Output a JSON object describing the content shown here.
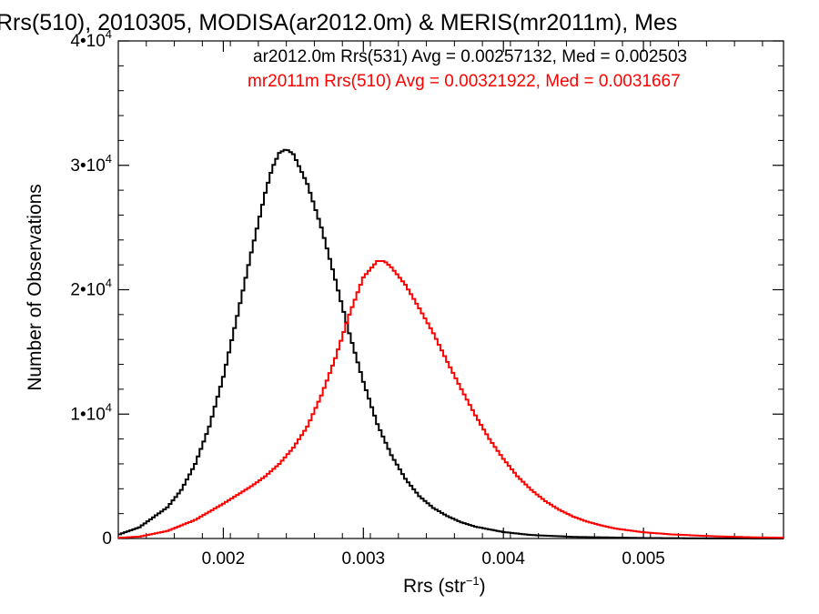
{
  "chart_data": {
    "type": "line",
    "title": "Rrs(510), 2010305, MODISA(ar2012.0m) & MERIS(mr2011m), Mes",
    "xlabel_main": "Rrs (str",
    "xlabel_sup": "−1",
    "xlabel_close": ")",
    "ylabel": "Number of Observations",
    "xlim": [
      0.00125,
      0.006
    ],
    "ylim": [
      0,
      40000
    ],
    "xticks": [
      {
        "value": 0.002,
        "label": "0.002"
      },
      {
        "value": 0.003,
        "label": "0.003"
      },
      {
        "value": 0.004,
        "label": "0.004"
      },
      {
        "value": 0.005,
        "label": "0.005"
      }
    ],
    "yticks": [
      {
        "value": 0,
        "label": "0",
        "sup": ""
      },
      {
        "value": 10000,
        "label": "1•10",
        "sup": "4"
      },
      {
        "value": 20000,
        "label": "2•10",
        "sup": "4"
      },
      {
        "value": 30000,
        "label": "3•10",
        "sup": "4"
      },
      {
        "value": 40000,
        "label": "4•10",
        "sup": "4"
      }
    ],
    "legend": [
      {
        "text": "ar2012.0m Rrs(531) Avg = 0.00257132, Med = 0.002503",
        "color": "#000000"
      },
      {
        "text": "mr2011m Rrs(510) Avg = 0.00321922, Med = 0.0031667",
        "color": "#ff0000"
      }
    ],
    "series": [
      {
        "color": "#000000",
        "points": [
          [
            0.00125,
            300
          ],
          [
            0.0014,
            900
          ],
          [
            0.0016,
            2500
          ],
          [
            0.0017,
            3900
          ],
          [
            0.0018,
            6000
          ],
          [
            0.0019,
            9000
          ],
          [
            0.002,
            13000
          ],
          [
            0.0021,
            17900
          ],
          [
            0.0022,
            23000
          ],
          [
            0.0023,
            27800
          ],
          [
            0.00235,
            29800
          ],
          [
            0.0024,
            31000
          ],
          [
            0.00245,
            31300
          ],
          [
            0.0025,
            30900
          ],
          [
            0.0026,
            28500
          ],
          [
            0.0027,
            25000
          ],
          [
            0.0028,
            20800
          ],
          [
            0.0029,
            16500
          ],
          [
            0.003,
            12600
          ],
          [
            0.0031,
            9200
          ],
          [
            0.0032,
            6700
          ],
          [
            0.0033,
            4800
          ],
          [
            0.0034,
            3400
          ],
          [
            0.0035,
            2450
          ],
          [
            0.0036,
            1800
          ],
          [
            0.0037,
            1300
          ],
          [
            0.0038,
            950
          ],
          [
            0.004,
            520
          ],
          [
            0.0042,
            280
          ],
          [
            0.0045,
            130
          ],
          [
            0.005,
            40
          ],
          [
            0.0055,
            10
          ],
          [
            0.006,
            0
          ]
        ]
      },
      {
        "color": "#ff0000",
        "points": [
          [
            0.00125,
            50
          ],
          [
            0.0014,
            150
          ],
          [
            0.0016,
            600
          ],
          [
            0.0018,
            1500
          ],
          [
            0.002,
            2800
          ],
          [
            0.0021,
            3500
          ],
          [
            0.0022,
            4200
          ],
          [
            0.0023,
            5000
          ],
          [
            0.0024,
            6000
          ],
          [
            0.0025,
            7300
          ],
          [
            0.0026,
            9000
          ],
          [
            0.0027,
            11500
          ],
          [
            0.0028,
            14500
          ],
          [
            0.0029,
            18000
          ],
          [
            0.003,
            21000
          ],
          [
            0.0031,
            22300
          ],
          [
            0.00315,
            22300
          ],
          [
            0.0032,
            21800
          ],
          [
            0.0033,
            20400
          ],
          [
            0.0034,
            18500
          ],
          [
            0.0035,
            16500
          ],
          [
            0.0036,
            14200
          ],
          [
            0.0037,
            12000
          ],
          [
            0.0038,
            9900
          ],
          [
            0.0039,
            8000
          ],
          [
            0.004,
            6400
          ],
          [
            0.0041,
            5000
          ],
          [
            0.0042,
            3900
          ],
          [
            0.0043,
            3000
          ],
          [
            0.0044,
            2300
          ],
          [
            0.0045,
            1750
          ],
          [
            0.0046,
            1350
          ],
          [
            0.0047,
            1050
          ],
          [
            0.0048,
            800
          ],
          [
            0.005,
            500
          ],
          [
            0.0052,
            330
          ],
          [
            0.0055,
            180
          ],
          [
            0.0058,
            90
          ],
          [
            0.006,
            60
          ]
        ]
      }
    ]
  }
}
